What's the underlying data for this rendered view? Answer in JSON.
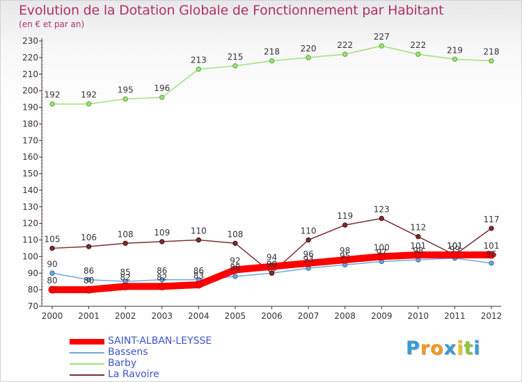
{
  "header": {
    "title": "Evolution de la Dotation Globale de Fonctionnement par Habitant",
    "subtitle": "(en € et par an)"
  },
  "brand": {
    "letters": [
      "P",
      "r",
      "o",
      "x",
      "i",
      "t",
      "i"
    ],
    "colors": [
      "#3a9ad9",
      "#f29a1f",
      "#f29a1f",
      "#3a9ad9",
      "#e8c22a",
      "#8fc43a",
      "#3a9ad9"
    ]
  },
  "chart_data": {
    "type": "line",
    "title": "Evolution de la Dotation Globale de Fonctionnement par Habitant",
    "subtitle": "(en € et par an)",
    "xlabel": "",
    "ylabel": "",
    "x": [
      "2000",
      "2001",
      "2002",
      "2003",
      "2004",
      "2005",
      "2006",
      "2007",
      "2008",
      "2009",
      "2010",
      "2011",
      "2012"
    ],
    "ylim": [
      70,
      230
    ],
    "yticks": [
      70,
      80,
      90,
      100,
      110,
      120,
      130,
      140,
      150,
      160,
      170,
      180,
      190,
      200,
      210,
      220,
      230
    ],
    "grid": false,
    "legend_position": "bottom-left",
    "series": [
      {
        "name": "SAINT-ALBAN-LEYSSE",
        "color": "#ff0000",
        "values": [
          80,
          80,
          82,
          82,
          83,
          92,
          94,
          96,
          98,
          100,
          101,
          101,
          101
        ]
      },
      {
        "name": "Bassens",
        "color": "#6fa6d8",
        "values": [
          90,
          86,
          85,
          86,
          86,
          88,
          90,
          93,
          95,
          97,
          98,
          99,
          96
        ]
      },
      {
        "name": "Barby",
        "color": "#9ee07a",
        "values": [
          192,
          192,
          195,
          196,
          213,
          215,
          218,
          220,
          222,
          227,
          222,
          219,
          218
        ]
      },
      {
        "name": "La Ravoire",
        "color": "#7a2e2e",
        "values": [
          105,
          106,
          108,
          109,
          110,
          108,
          90,
          110,
          119,
          123,
          112,
          101,
          117
        ]
      }
    ]
  }
}
